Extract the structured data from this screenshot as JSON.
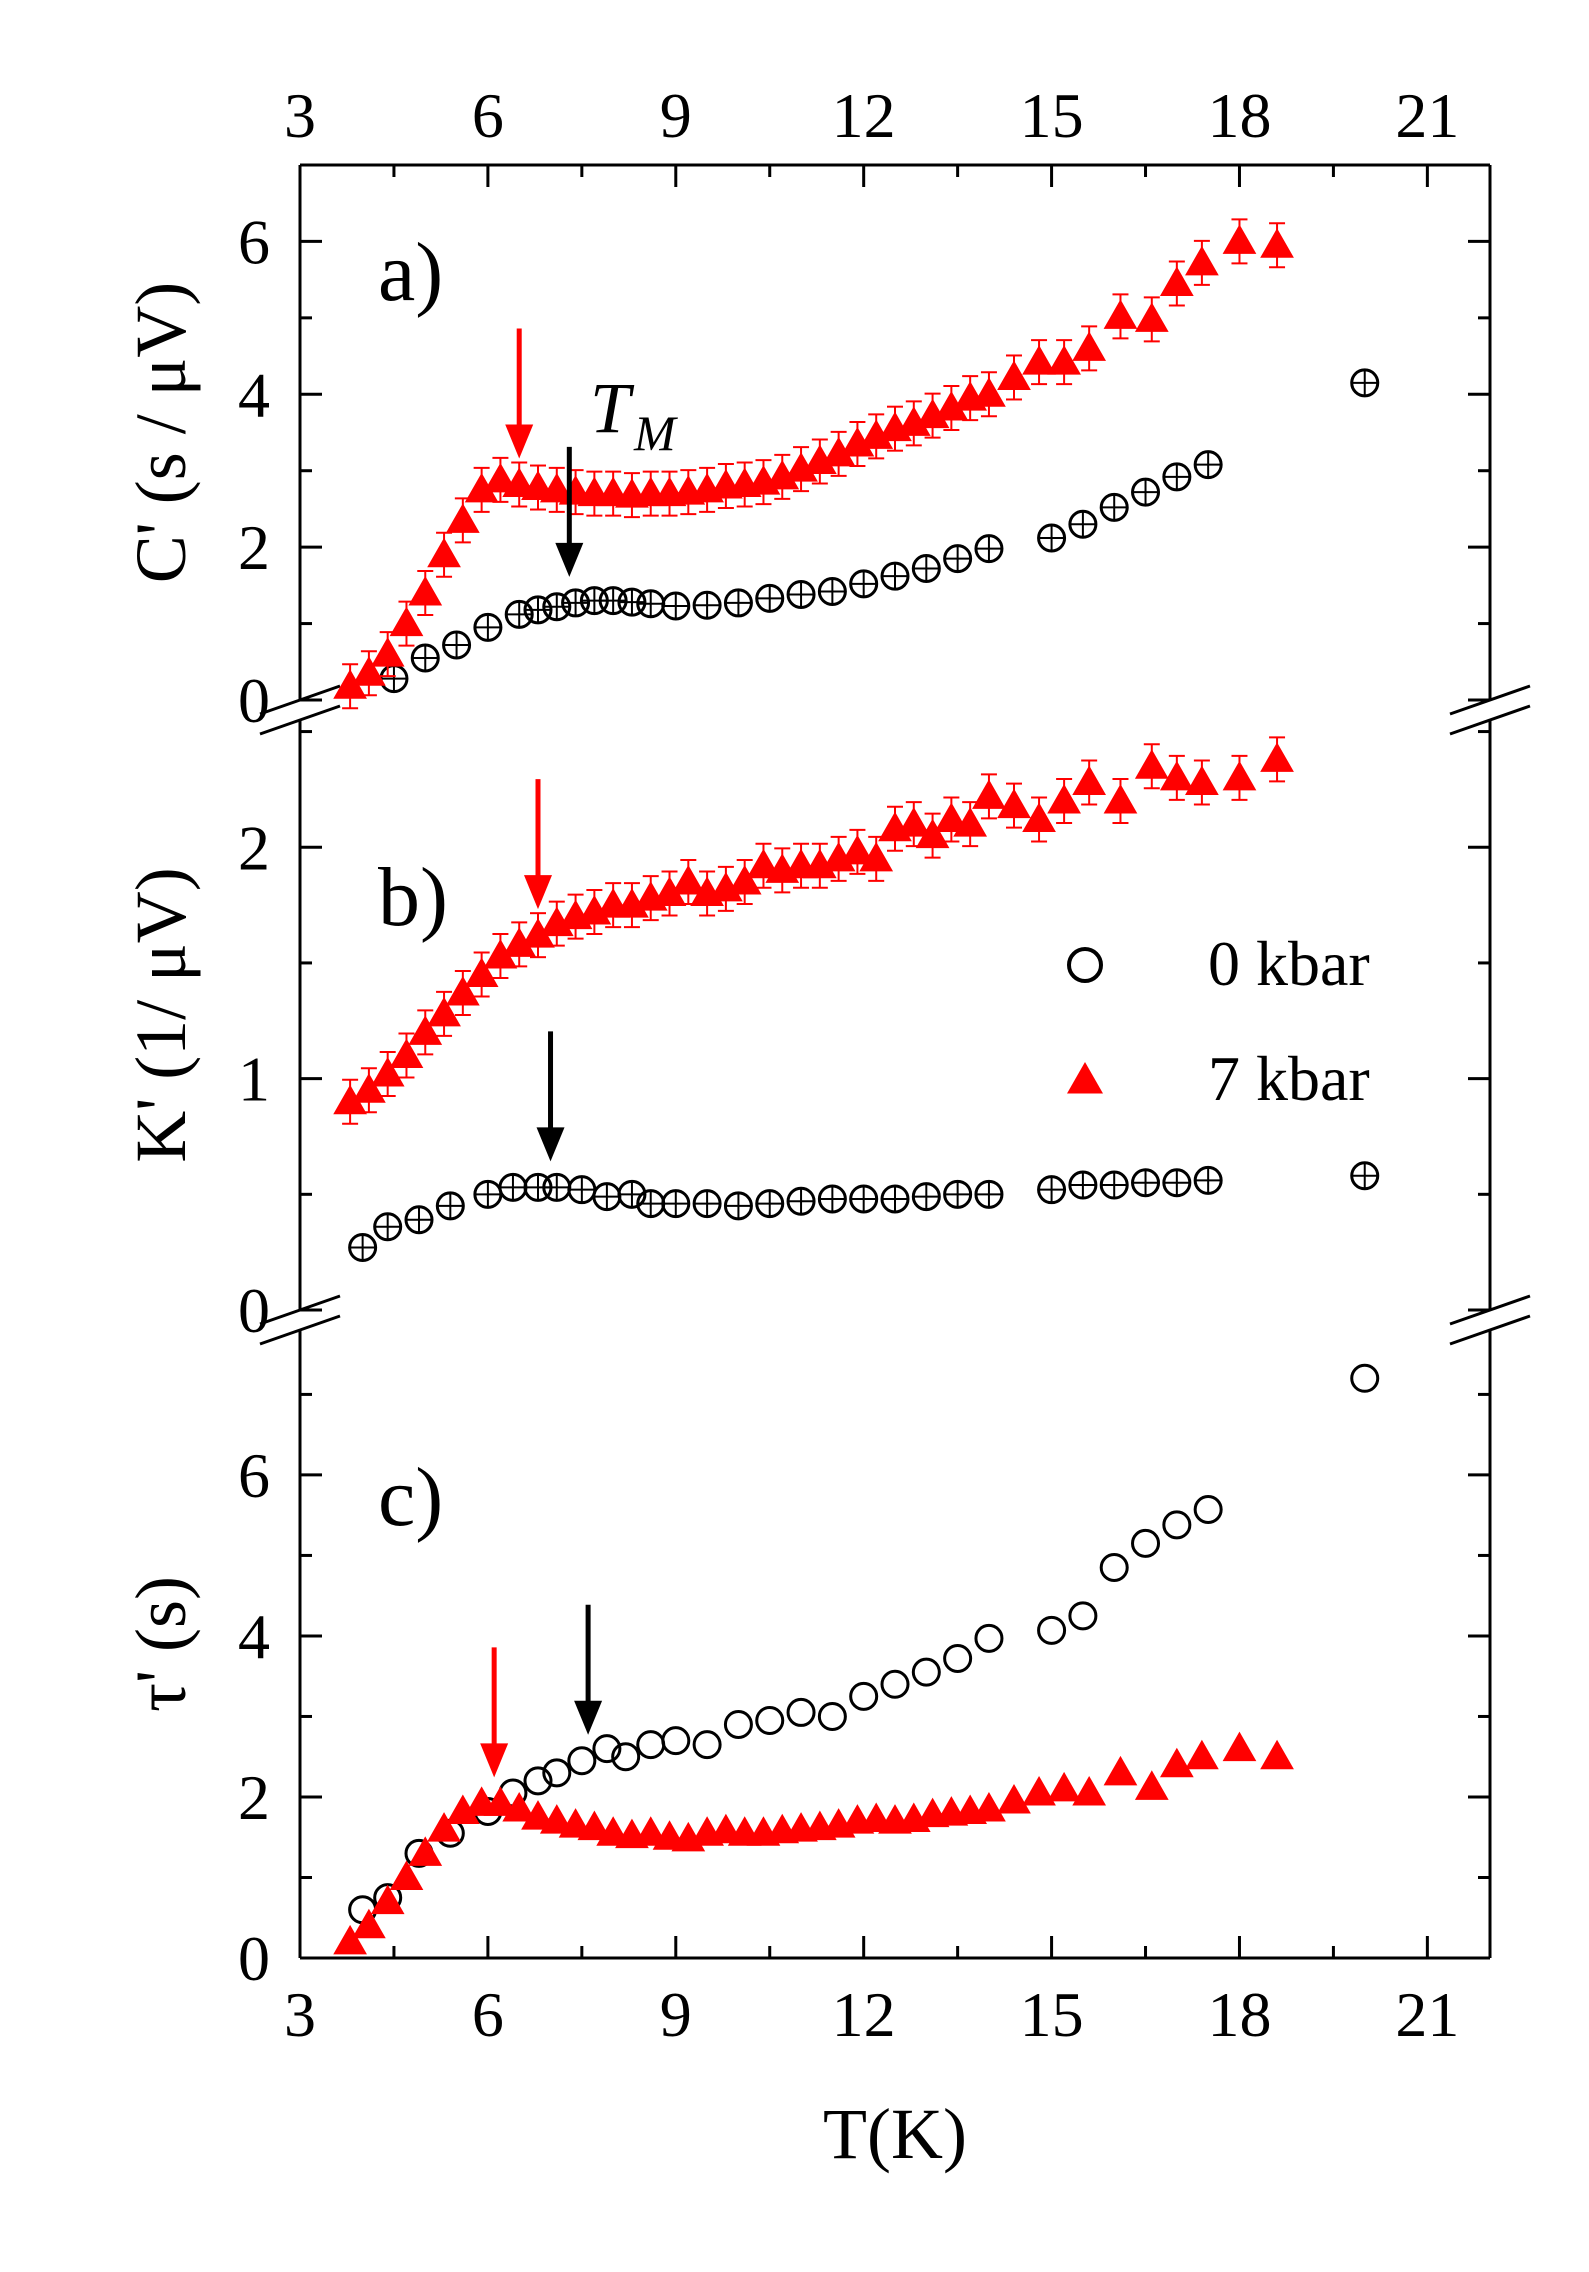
{
  "chart_data": {
    "type": "scatter",
    "colors": {
      "p0": "#000000",
      "p7": "#ff0000"
    },
    "x_axis": {
      "label": "T(K)",
      "range": [
        3,
        22
      ],
      "ticks": [
        "3",
        "6",
        "9",
        "12",
        "15",
        "18",
        "21"
      ]
    },
    "legend": {
      "position": "right, panel b",
      "entries": [
        {
          "series": "p0",
          "label": "0 kbar",
          "marker": "open-circle"
        },
        {
          "series": "p7",
          "label": "7 kbar",
          "marker": "filled-triangle"
        }
      ]
    },
    "panels": [
      {
        "id": "a",
        "letter": "a)",
        "ylabel": "C' (s / μV)",
        "ylim": [
          0,
          7
        ],
        "yticks": [
          "0",
          "2",
          "4",
          "6"
        ],
        "annotation": {
          "text": "T",
          "sub": "M"
        },
        "arrows": [
          {
            "series": "p7",
            "x": 6.5
          },
          {
            "series": "p0",
            "x": 7.3
          }
        ],
        "series": [
          {
            "key": "p0",
            "x": [
              4.5,
              5.0,
              5.5,
              6.0,
              6.5,
              6.8,
              7.1,
              7.4,
              7.7,
              8.0,
              8.3,
              8.6,
              9.0,
              9.5,
              10.0,
              10.5,
              11.0,
              11.5,
              12.0,
              12.5,
              13.0,
              13.5,
              14.0,
              15.0,
              15.5,
              16.0,
              16.5,
              17.0,
              17.5,
              20.0
            ],
            "y": [
              0.28,
              0.55,
              0.72,
              0.95,
              1.12,
              1.18,
              1.22,
              1.27,
              1.3,
              1.3,
              1.28,
              1.26,
              1.23,
              1.24,
              1.27,
              1.33,
              1.38,
              1.42,
              1.52,
              1.62,
              1.72,
              1.85,
              1.98,
              2.12,
              2.3,
              2.52,
              2.72,
              2.92,
              3.08,
              4.15
            ]
          },
          {
            "key": "p7",
            "x": [
              3.8,
              4.1,
              4.4,
              4.7,
              5.0,
              5.3,
              5.6,
              5.9,
              6.2,
              6.5,
              6.8,
              7.1,
              7.4,
              7.7,
              8.0,
              8.3,
              8.6,
              8.9,
              9.2,
              9.5,
              9.8,
              10.1,
              10.4,
              10.7,
              11.0,
              11.3,
              11.6,
              11.9,
              12.2,
              12.5,
              12.8,
              13.1,
              13.4,
              13.7,
              14.0,
              14.4,
              14.8,
              15.2,
              15.6,
              16.1,
              16.6,
              17.0,
              17.4,
              18.0,
              18.6
            ],
            "y": [
              0.18,
              0.35,
              0.6,
              1.0,
              1.4,
              1.9,
              2.35,
              2.75,
              2.88,
              2.82,
              2.78,
              2.75,
              2.72,
              2.7,
              2.7,
              2.68,
              2.7,
              2.7,
              2.72,
              2.75,
              2.8,
              2.82,
              2.85,
              2.92,
              3.02,
              3.12,
              3.22,
              3.35,
              3.45,
              3.55,
              3.62,
              3.72,
              3.82,
              3.95,
              4.0,
              4.22,
              4.42,
              4.42,
              4.6,
              5.02,
              4.98,
              5.45,
              5.72,
              6.0,
              5.95
            ]
          }
        ]
      },
      {
        "id": "b",
        "letter": "b)",
        "ylabel": "K' (1/ μV)",
        "ylim": [
          0,
          2.55
        ],
        "yticks": [
          "0",
          "1",
          "2"
        ],
        "arrows": [
          {
            "series": "p7",
            "x": 6.8
          },
          {
            "series": "p0",
            "x": 7.0
          }
        ],
        "series": [
          {
            "key": "p0",
            "x": [
              4.0,
              4.4,
              4.9,
              5.4,
              6.0,
              6.4,
              6.8,
              7.1,
              7.5,
              7.9,
              8.3,
              8.6,
              9.0,
              9.5,
              10.0,
              10.5,
              11.0,
              11.5,
              12.0,
              12.5,
              13.0,
              13.5,
              14.0,
              15.0,
              15.5,
              16.0,
              16.5,
              17.0,
              17.5,
              20.0
            ],
            "y": [
              0.27,
              0.36,
              0.39,
              0.45,
              0.5,
              0.53,
              0.53,
              0.53,
              0.52,
              0.49,
              0.5,
              0.46,
              0.46,
              0.46,
              0.45,
              0.46,
              0.47,
              0.48,
              0.48,
              0.48,
              0.49,
              0.5,
              0.5,
              0.52,
              0.54,
              0.54,
              0.55,
              0.55,
              0.56,
              0.58
            ]
          },
          {
            "key": "p7",
            "x": [
              3.8,
              4.1,
              4.4,
              4.7,
              5.0,
              5.3,
              5.6,
              5.9,
              6.2,
              6.5,
              6.8,
              7.1,
              7.4,
              7.7,
              8.0,
              8.3,
              8.6,
              8.9,
              9.2,
              9.5,
              9.8,
              10.1,
              10.4,
              10.7,
              11.0,
              11.3,
              11.6,
              11.9,
              12.2,
              12.5,
              12.8,
              13.1,
              13.4,
              13.7,
              14.0,
              14.4,
              14.8,
              15.2,
              15.6,
              16.1,
              16.6,
              17.0,
              17.4,
              18.0,
              18.6
            ],
            "y": [
              0.9,
              0.95,
              1.02,
              1.1,
              1.2,
              1.28,
              1.37,
              1.45,
              1.53,
              1.58,
              1.62,
              1.67,
              1.7,
              1.72,
              1.75,
              1.75,
              1.78,
              1.8,
              1.85,
              1.8,
              1.82,
              1.85,
              1.92,
              1.9,
              1.92,
              1.92,
              1.95,
              1.98,
              1.95,
              2.08,
              2.1,
              2.05,
              2.12,
              2.1,
              2.22,
              2.18,
              2.12,
              2.2,
              2.28,
              2.2,
              2.35,
              2.3,
              2.28,
              2.3,
              2.38
            ]
          }
        ]
      },
      {
        "id": "c",
        "letter": "c)",
        "ylabel": "τ' (s)",
        "ylim": [
          0,
          7.8
        ],
        "yticks": [
          "0",
          "2",
          "4",
          "6"
        ],
        "arrows": [
          {
            "series": "p7",
            "x": 6.1
          },
          {
            "series": "p0",
            "x": 7.6
          }
        ],
        "series": [
          {
            "key": "p0",
            "x": [
              4.0,
              4.4,
              4.9,
              5.4,
              6.0,
              6.4,
              6.8,
              7.1,
              7.5,
              7.9,
              8.2,
              8.6,
              9.0,
              9.5,
              10.0,
              10.5,
              11.0,
              11.5,
              12.0,
              12.5,
              13.0,
              13.5,
              14.0,
              15.0,
              15.5,
              16.0,
              16.5,
              17.0,
              17.5,
              20.0
            ],
            "y": [
              0.6,
              0.75,
              1.3,
              1.55,
              1.82,
              2.05,
              2.2,
              2.3,
              2.45,
              2.6,
              2.5,
              2.65,
              2.7,
              2.65,
              2.9,
              2.95,
              3.05,
              3.0,
              3.25,
              3.4,
              3.55,
              3.72,
              3.97,
              4.07,
              4.25,
              4.85,
              5.15,
              5.38,
              5.57,
              7.2
            ]
          },
          {
            "key": "p7",
            "x": [
              3.8,
              4.1,
              4.4,
              4.7,
              5.0,
              5.3,
              5.6,
              5.9,
              6.2,
              6.5,
              6.8,
              7.1,
              7.4,
              7.7,
              8.0,
              8.3,
              8.6,
              8.9,
              9.2,
              9.5,
              9.8,
              10.1,
              10.4,
              10.7,
              11.0,
              11.3,
              11.6,
              11.9,
              12.2,
              12.5,
              12.8,
              13.1,
              13.4,
              13.7,
              14.0,
              14.4,
              14.8,
              15.2,
              15.6,
              16.1,
              16.6,
              17.0,
              17.4,
              18.0,
              18.6
            ],
            "y": [
              0.2,
              0.4,
              0.7,
              1.0,
              1.3,
              1.6,
              1.82,
              1.92,
              1.92,
              1.85,
              1.75,
              1.7,
              1.65,
              1.62,
              1.55,
              1.52,
              1.55,
              1.5,
              1.48,
              1.55,
              1.58,
              1.55,
              1.55,
              1.58,
              1.6,
              1.62,
              1.65,
              1.7,
              1.72,
              1.7,
              1.72,
              1.78,
              1.8,
              1.82,
              1.85,
              1.95,
              2.05,
              2.1,
              2.05,
              2.3,
              2.12,
              2.4,
              2.5,
              2.6,
              2.5
            ]
          }
        ]
      }
    ]
  }
}
